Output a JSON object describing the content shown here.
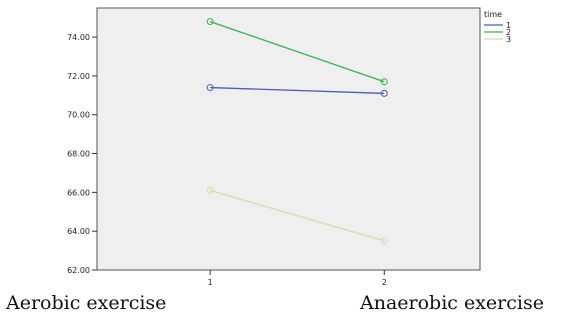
{
  "chart_data": {
    "type": "line",
    "x": [
      "1",
      "2"
    ],
    "xlim": [
      0.35,
      2.55
    ],
    "ylim": [
      62.0,
      75.5
    ],
    "yticks": [
      62.0,
      64.0,
      66.0,
      68.0,
      70.0,
      72.0,
      74.0
    ],
    "ytick_labels": [
      "62.00",
      "64.00",
      "66.00",
      "68.00",
      "70.00",
      "72.00",
      "74.00"
    ],
    "grid": false,
    "legend": {
      "title": "time",
      "placement": "top-right, outside plot"
    },
    "series": [
      {
        "name": "1",
        "color": "#4f5bb8",
        "values": [
          71.4,
          71.1
        ]
      },
      {
        "name": "2",
        "color": "#33b54a",
        "values": [
          74.8,
          71.7
        ]
      },
      {
        "name": "3",
        "color": "#d4dcaa",
        "values": [
          66.1,
          63.5
        ]
      }
    ],
    "plot_background": "#efefef"
  },
  "captions": {
    "left": "Aerobic exercise",
    "right": "Anaerobic exercise"
  }
}
